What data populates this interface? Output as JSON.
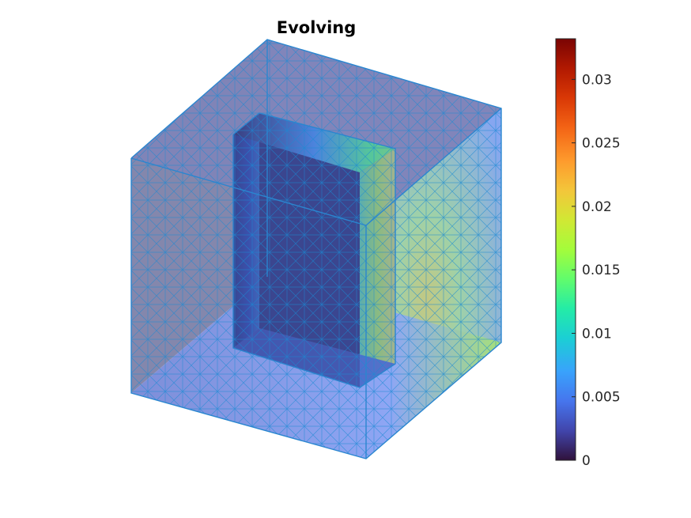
{
  "chart_data": {
    "type": "heatmap",
    "title": "Evolving",
    "colormap": "turbo",
    "colorbar": {
      "clim": [
        0,
        0.0332
      ],
      "ticks": [
        0,
        0.005,
        0.01,
        0.015,
        0.02,
        0.025,
        0.03
      ],
      "tick_labels": [
        "0",
        "0.005",
        "0.01",
        "0.015",
        "0.02",
        "0.025",
        "0.03"
      ],
      "placement": "right"
    },
    "surface": "tetrahedral mesh of a cube with a rectangular cavity",
    "colors": {
      "mesh_edge": "#1a8ad4",
      "low": "#30123b",
      "high": "#7a0403"
    }
  }
}
